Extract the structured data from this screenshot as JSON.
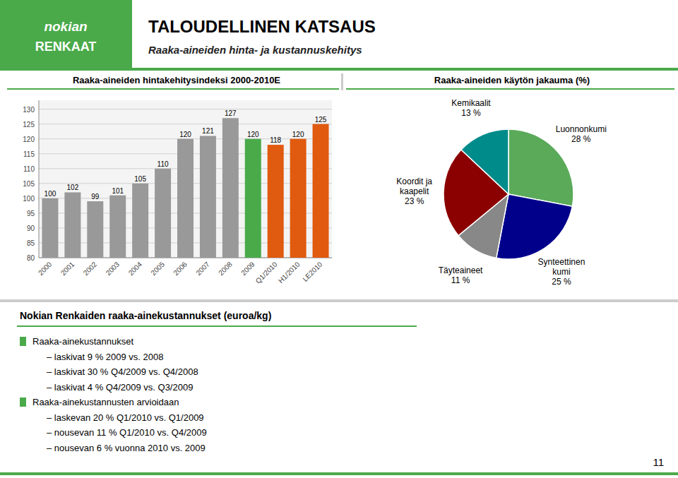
{
  "title": "TALOUDELLINEN KATSAUS",
  "subtitle": "Raaka-aineiden hinta- ja kustannuskehitys",
  "annotations": [
    "nokian",
    "RENKAAT",
    "Nokian Renkaiden raaka-ainekustannukset (euroa/kg)",
    "Raaka-ainekustannukset",
    "– laskivat 9 % 2009 vs. 2008",
    "– laskivat 30 % Q4/2009 vs. Q4/2008",
    "– laskivat 4 % Q4/2009 vs. Q3/2009",
    "Raaka-ainekustannusten arvioidaan",
    "– laskevan 20 % Q1/2010 vs. Q1/2009",
    "– nousevan 11 % Q1/2010 vs. Q4/2009",
    "– nousevan 6 % vuonna 2010 vs. 2009",
    "11"
  ],
  "chart_data": [
    {
      "type": "bar",
      "title": "Raaka-aineiden hintakehitysindeksi 2000-2010E",
      "categories": [
        "2000",
        "2001",
        "2002",
        "2003",
        "2004",
        "2005",
        "2006",
        "2007",
        "2008",
        "2009",
        "Q1/2010",
        "H1/2010",
        "LE2010"
      ],
      "values": [
        100,
        102,
        99,
        101,
        105,
        110,
        120,
        121,
        127,
        120,
        118,
        120,
        125
      ],
      "colors": [
        "#999999",
        "#999999",
        "#999999",
        "#999999",
        "#999999",
        "#999999",
        "#999999",
        "#999999",
        "#999999",
        "#4aaa4a",
        "#e05a10",
        "#e05a10",
        "#e05a10"
      ],
      "ylim": [
        80,
        133
      ],
      "yticks": [
        80,
        85,
        90,
        95,
        100,
        105,
        110,
        115,
        120,
        125,
        130
      ],
      "grid": true,
      "data_labels": true
    },
    {
      "type": "pie",
      "title": "Raaka-aineiden käytön jakauma (%)",
      "categories": [
        "Luonnonkumi",
        "Synteettinen\nkumi",
        "Täyteaineet",
        "Koordit ja\nkaapelit",
        "Kemikaalit"
      ],
      "values": [
        28,
        25,
        11,
        23,
        13
      ],
      "value_labels": [
        "28 %",
        "25 %",
        "11 %",
        "23 %",
        "13 %"
      ],
      "colors": [
        "#5aaa5a",
        "#00008b",
        "#888888",
        "#8b0000",
        "#008b8b"
      ],
      "data_labels": true
    }
  ]
}
